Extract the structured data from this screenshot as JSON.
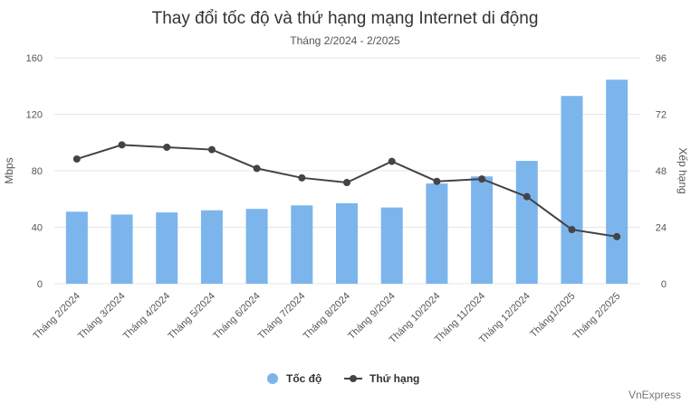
{
  "chart_data": {
    "type": "bar+line",
    "title": "Thay đổi tốc độ và thứ hạng mạng Internet di động",
    "subtitle": "Tháng 2/2024 - 2/2025",
    "categories": [
      "Tháng 2/2024",
      "Tháng 3/2024",
      "Tháng 4/2024",
      "Tháng 5/2024",
      "Tháng 6/2024",
      "Tháng 7/2024",
      "Tháng 8/2024",
      "Tháng 9/2024",
      "Tháng 10/2024",
      "Tháng 11/2024",
      "Tháng 12/2024",
      "Tháng1/2025",
      "Tháng 2/2025"
    ],
    "ylabel_left": "Mbps",
    "ylabel_right": "Xếp hạng",
    "ylim_left": [
      0,
      160
    ],
    "ylim_right": [
      0,
      96
    ],
    "yticks_left": [
      0,
      40,
      80,
      120,
      160
    ],
    "yticks_right": [
      0,
      24,
      48,
      72,
      96
    ],
    "series": [
      {
        "name": "Tốc độ",
        "type": "bar",
        "axis": "left",
        "color": "#7cb5ec",
        "values": [
          51,
          49,
          50.5,
          52,
          53,
          55.5,
          57,
          54,
          71,
          76,
          87,
          133,
          144.5
        ]
      },
      {
        "name": "Thứ hạng",
        "type": "line",
        "axis": "right",
        "color": "#434348",
        "values": [
          53,
          59,
          58,
          57,
          49,
          45,
          43,
          52,
          43.5,
          44.5,
          37,
          23,
          20
        ]
      }
    ],
    "legend": "bottom-center",
    "grid": true,
    "credit": "VnExpress"
  }
}
